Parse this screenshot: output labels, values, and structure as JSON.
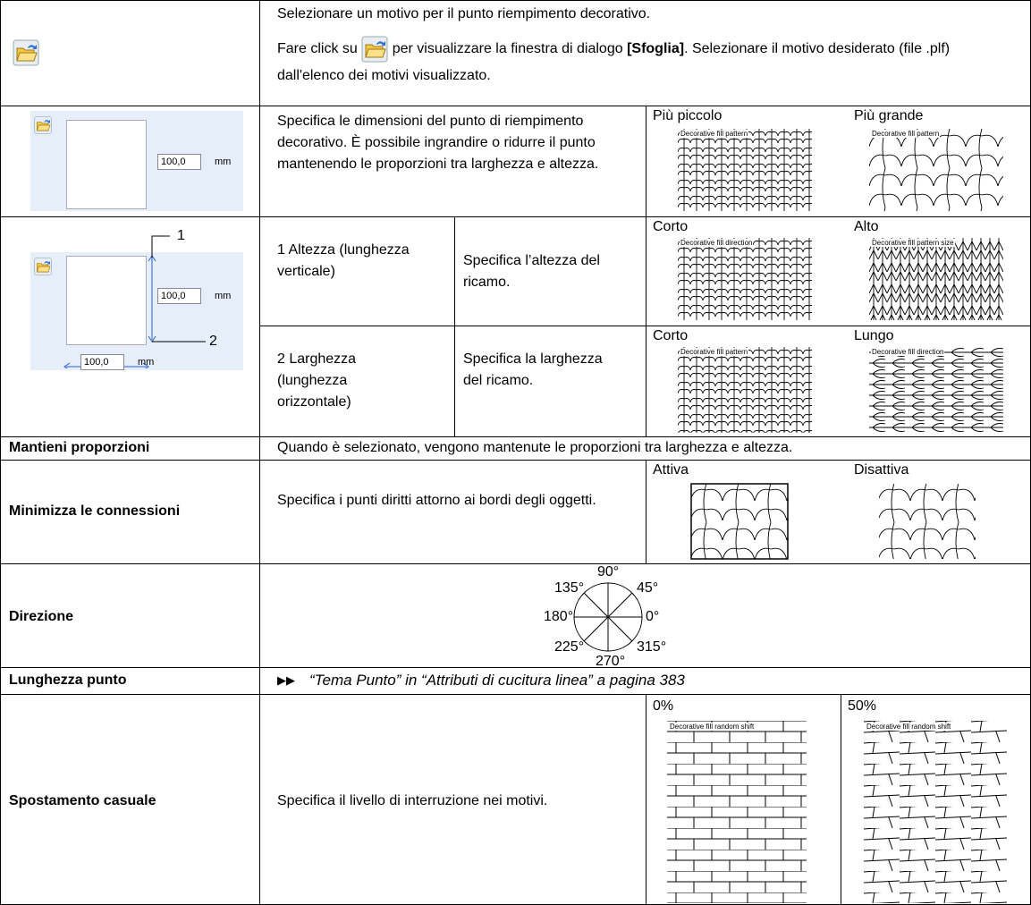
{
  "browse": {
    "line1": "Selezionare un motivo per il punto riempimento decorativo.",
    "line2_before": "Fare click su",
    "line2_after": "per visualizzare la finestra di dialogo",
    "line2_bold": "[Sfoglia]",
    "line2_end": ". Selezionare il motivo desiderato (file .plf) dall'elenco dei motivi visualizzato."
  },
  "size": {
    "field": "100,0",
    "unit": "mm",
    "description": "Specifica le dimensioni del punto di riempimento decorativo. È possibile ingrandire o ridurre il punto mantenendo le proporzioni tra larghezza e altezza.",
    "samples": [
      {
        "caption": "Più piccolo",
        "pattern_label": "Decorative fill pattern"
      },
      {
        "caption": "Più grande",
        "pattern_label": "Decorative fill pattern"
      }
    ]
  },
  "dimensions": {
    "callouts": [
      "1",
      "2"
    ],
    "fields": [
      {
        "value": "100,0",
        "unit": "mm"
      },
      {
        "value": "100,0",
        "unit": "mm"
      }
    ],
    "items": [
      {
        "label": "1 Altezza (lunghezza verticale)",
        "description": "Specifica l’altezza del ricamo.",
        "samples": [
          {
            "caption": "Corto",
            "pattern_label": "Decorative fill direction"
          },
          {
            "caption": "Alto",
            "pattern_label": "Decorative fill pattern size"
          }
        ]
      },
      {
        "label": "2 Larghezza (lunghezza orizzontale)",
        "description": "Specifica la larghezza del ricamo.",
        "samples": [
          {
            "caption": "Corto",
            "pattern_label": "Decorative fill pattern"
          },
          {
            "caption": "Lungo",
            "pattern_label": "Decorative fill direction"
          }
        ]
      }
    ]
  },
  "keep_ratio": {
    "label": "Mantieni proporzioni",
    "description": "Quando è selezionato, vengono mantenute le proporzioni tra larghezza e altezza."
  },
  "minimize": {
    "label": "Minimizza le connessioni",
    "description": "Specifica i punti diritti attorno ai bordi degli oggetti.",
    "samples": [
      {
        "caption": "Attiva"
      },
      {
        "caption": "Disattiva"
      }
    ]
  },
  "direction": {
    "label": "Direzione",
    "angles": [
      "90°",
      "45°",
      "0°",
      "315°",
      "270°",
      "225°",
      "180°",
      "135°"
    ]
  },
  "stitch_length": {
    "label": "Lunghezza punto",
    "marker": "▶▶",
    "reference": "“Tema Punto” in “Attributi di cucitura linea” a pagina 383"
  },
  "random_shift": {
    "label": "Spostamento casuale",
    "description": "Specifica il livello di interruzione nei motivi.",
    "samples": [
      {
        "caption": "0%",
        "pattern_label": "Decorative fill random shift"
      },
      {
        "caption": "50%",
        "pattern_label": "Decorative fill random shift"
      }
    ]
  }
}
